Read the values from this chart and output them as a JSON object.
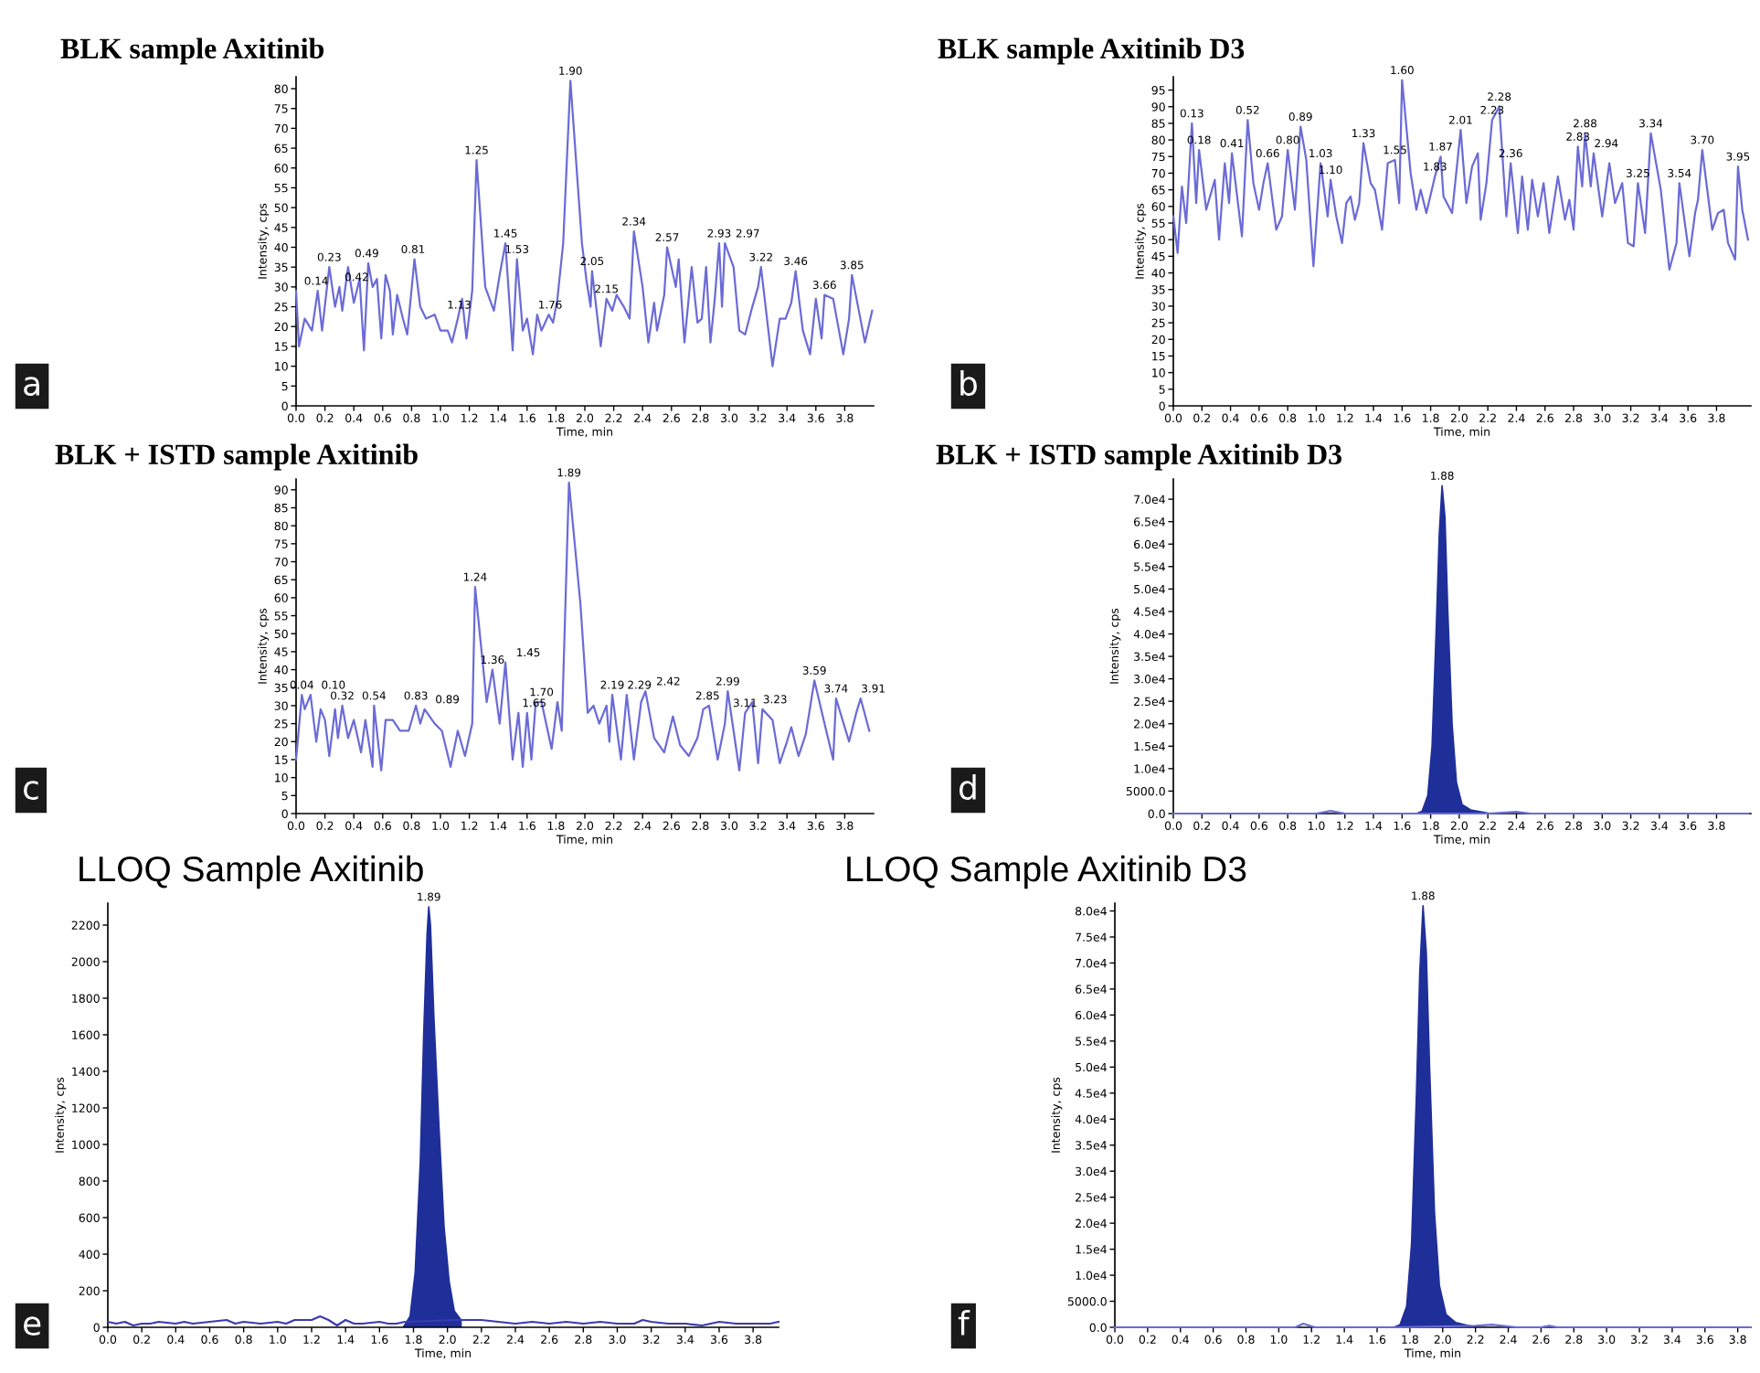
{
  "chart_data": [
    {
      "type": "line",
      "title": "BLK sample Axitinib",
      "xlabel": "Time, min",
      "ylabel": "Intensity, cps",
      "xlim": [
        0,
        4.0
      ],
      "ylim": [
        0,
        83
      ],
      "xticks": [
        {
          "value": 0,
          "label": "0.0"
        },
        0.2,
        0.4,
        0.6,
        0.8,
        {
          "value": 1,
          "label": "1.0"
        },
        1.2,
        1.4,
        1.6,
        1.8,
        {
          "value": 2,
          "label": "2.0"
        },
        2.2,
        2.4,
        2.6,
        2.8,
        {
          "value": 3,
          "label": "3.0"
        },
        3.2,
        3.4,
        3.6,
        3.8
      ],
      "yticks": [
        0,
        5,
        10,
        15,
        20,
        25,
        30,
        35,
        40,
        45,
        50,
        55,
        60,
        65,
        70,
        75,
        80
      ],
      "series": [
        {
          "color": "#6b6bd6",
          "x": [
            0,
            0.02,
            0.06,
            0.11,
            0.15,
            0.18,
            0.23,
            0.27,
            0.3,
            0.32,
            0.36,
            0.4,
            0.44,
            0.47,
            0.5,
            0.53,
            0.56,
            0.59,
            0.62,
            0.65,
            0.67,
            0.7,
            0.74,
            0.77,
            0.82,
            0.86,
            0.9,
            0.96,
            1.0,
            1.05,
            1.08,
            1.12,
            1.15,
            1.18,
            1.22,
            1.25,
            1.31,
            1.34,
            1.37,
            1.41,
            1.45,
            1.5,
            1.53,
            1.57,
            1.6,
            1.64,
            1.67,
            1.7,
            1.75,
            1.78,
            1.81,
            1.85,
            1.9,
            1.98,
            2.01,
            2.04,
            2.05,
            2.11,
            2.15,
            2.19,
            2.22,
            2.27,
            2.31,
            2.34,
            2.4,
            2.44,
            2.48,
            2.5,
            2.55,
            2.57,
            2.63,
            2.65,
            2.69,
            2.74,
            2.78,
            2.81,
            2.84,
            2.87,
            2.9,
            2.93,
            2.95,
            2.97,
            3.03,
            3.07,
            3.11,
            3.16,
            3.2,
            3.22,
            3.3,
            3.35,
            3.39,
            3.43,
            3.46,
            3.51,
            3.56,
            3.6,
            3.64,
            3.66,
            3.72,
            3.79,
            3.83,
            3.85,
            3.94,
            3.99
          ],
          "values": [
            29,
            15,
            22,
            19,
            29,
            19,
            35,
            25,
            30,
            24,
            35,
            26,
            32,
            14,
            36,
            30,
            32,
            17,
            33,
            29,
            18,
            28,
            22,
            18,
            37,
            25,
            22,
            23,
            19,
            19,
            16,
            22,
            27,
            17,
            29,
            62,
            30,
            27,
            24,
            33,
            41,
            14,
            37,
            19,
            22,
            13,
            23,
            19,
            23,
            21,
            27,
            41,
            82,
            41,
            32,
            25,
            34,
            15,
            27,
            24,
            28,
            25,
            22,
            44,
            30,
            16,
            26,
            19,
            28,
            40,
            30,
            37,
            16,
            35,
            21,
            22,
            35,
            16,
            27,
            41,
            25,
            41,
            35,
            19,
            18,
            25,
            30,
            35,
            10,
            22,
            22,
            26,
            34,
            19,
            13,
            27,
            17,
            28,
            27,
            13,
            22,
            33,
            16,
            24
          ]
        }
      ],
      "annotations": [
        "a",
        {
          "text": "0.14",
          "x": 0.14,
          "y": 29
        },
        {
          "text": "0.23",
          "x": 0.23,
          "y": 35
        },
        {
          "text": "0.42",
          "x": 0.42,
          "y": 30
        },
        {
          "text": "0.49",
          "x": 0.49,
          "y": 36
        },
        {
          "text": "0.81",
          "x": 0.81,
          "y": 37
        },
        {
          "text": "1.13",
          "x": 1.13,
          "y": 23
        },
        {
          "text": "1.25",
          "x": 1.25,
          "y": 62
        },
        {
          "text": "1.45",
          "x": 1.45,
          "y": 41
        },
        {
          "text": "1.53",
          "x": 1.53,
          "y": 37
        },
        {
          "text": "1.76",
          "x": 1.76,
          "y": 23
        },
        {
          "text": "1.90",
          "x": 1.9,
          "y": 82
        },
        {
          "text": "2.05",
          "x": 2.05,
          "y": 34
        },
        {
          "text": "2.15",
          "x": 2.15,
          "y": 27
        },
        {
          "text": "2.34",
          "x": 2.34,
          "y": 44
        },
        {
          "text": "2.57",
          "x": 2.57,
          "y": 40
        },
        {
          "text": "2.93",
          "x": 2.93,
          "y": 41
        },
        {
          "text": "2.97",
          "x": 2.97,
          "y": 41
        },
        {
          "text": "3.22",
          "x": 3.22,
          "y": 35
        },
        {
          "text": "3.46",
          "x": 3.46,
          "y": 34
        },
        {
          "text": "3.66",
          "x": 3.66,
          "y": 28
        },
        {
          "text": "3.85",
          "x": 3.85,
          "y": 33
        }
      ]
    },
    {
      "type": "line",
      "title": "BLK sample Axitinib D3",
      "xlabel": "Time, min",
      "ylabel": "Intensity, cps",
      "xlim": [
        0,
        4.04
      ],
      "ylim": [
        0,
        99
      ],
      "xticks": [
        {
          "value": 0,
          "label": "0.0"
        },
        0.2,
        0.4,
        0.6,
        0.8,
        {
          "value": 1,
          "label": "1.0"
        },
        1.2,
        1.4,
        1.6,
        1.8,
        {
          "value": 2,
          "label": "2.0"
        },
        2.2,
        2.4,
        2.6,
        2.8,
        {
          "value": 3,
          "label": "3.0"
        },
        3.2,
        3.4,
        3.6,
        3.8
      ],
      "yticks": [
        0,
        5,
        10,
        15,
        20,
        25,
        30,
        35,
        40,
        45,
        50,
        55,
        60,
        65,
        70,
        75,
        80,
        85,
        90,
        95
      ],
      "series": [
        {
          "color": "#6b6bd6",
          "x": [
            0,
            0.03,
            0.06,
            0.09,
            0.13,
            0.16,
            0.18,
            0.23,
            0.27,
            0.29,
            0.32,
            0.36,
            0.39,
            0.41,
            0.48,
            0.52,
            0.56,
            0.6,
            0.63,
            0.66,
            0.72,
            0.76,
            0.8,
            0.85,
            0.89,
            0.93,
            0.98,
            1.03,
            1.08,
            1.1,
            1.14,
            1.18,
            1.21,
            1.24,
            1.27,
            1.3,
            1.33,
            1.38,
            1.41,
            1.46,
            1.5,
            1.55,
            1.58,
            1.6,
            1.66,
            1.7,
            1.73,
            1.77,
            1.83,
            1.87,
            1.89,
            1.95,
            2.01,
            2.05,
            2.09,
            2.13,
            2.15,
            2.19,
            2.23,
            2.28,
            2.33,
            2.36,
            2.41,
            2.44,
            2.48,
            2.51,
            2.55,
            2.59,
            2.63,
            2.69,
            2.74,
            2.77,
            2.8,
            2.83,
            2.86,
            2.88,
            2.92,
            2.94,
            3.0,
            3.05,
            3.09,
            3.14,
            3.18,
            3.22,
            3.25,
            3.3,
            3.34,
            3.41,
            3.47,
            3.52,
            3.54,
            3.61,
            3.65,
            3.67,
            3.7,
            3.77,
            3.81,
            3.85,
            3.88,
            3.93,
            3.95,
            3.98,
            4.02
          ],
          "values": [
            57,
            46,
            66,
            55,
            85,
            61,
            77,
            59,
            65,
            68,
            50,
            73,
            61,
            76,
            51,
            86,
            67,
            59,
            67,
            73,
            53,
            57,
            77,
            59,
            84,
            74,
            42,
            73,
            57,
            68,
            57,
            49,
            61,
            63,
            56,
            61,
            79,
            67,
            65,
            53,
            73,
            74,
            61,
            98,
            70,
            59,
            65,
            58,
            69,
            75,
            63,
            58,
            83,
            61,
            72,
            76,
            56,
            67,
            86,
            90,
            57,
            73,
            52,
            69,
            53,
            68,
            57,
            67,
            52,
            69,
            56,
            62,
            53,
            78,
            66,
            82,
            66,
            76,
            57,
            73,
            61,
            67,
            49,
            48,
            67,
            52,
            82,
            65,
            41,
            49,
            67,
            45,
            58,
            62,
            77,
            53,
            58,
            59,
            49,
            44,
            72,
            59,
            50
          ]
        }
      ],
      "annotations": [
        "b",
        {
          "text": "0.13",
          "x": 0.13,
          "y": 85
        },
        {
          "text": "0.18",
          "x": 0.18,
          "y": 77
        },
        {
          "text": "0.41",
          "x": 0.41,
          "y": 76
        },
        {
          "text": "0.52",
          "x": 0.52,
          "y": 86
        },
        {
          "text": "0.66",
          "x": 0.66,
          "y": 73
        },
        {
          "text": "0.80",
          "x": 0.8,
          "y": 77
        },
        {
          "text": "0.89",
          "x": 0.89,
          "y": 84
        },
        {
          "text": "1.03",
          "x": 1.03,
          "y": 73
        },
        {
          "text": "1.10",
          "x": 1.1,
          "y": 68
        },
        {
          "text": "1.33",
          "x": 1.33,
          "y": 79
        },
        {
          "text": "1.55",
          "x": 1.55,
          "y": 74
        },
        {
          "text": "1.60",
          "x": 1.6,
          "y": 98
        },
        {
          "text": "1.83",
          "x": 1.83,
          "y": 69
        },
        {
          "text": "1.87",
          "x": 1.87,
          "y": 75
        },
        {
          "text": "2.01",
          "x": 2.01,
          "y": 83
        },
        {
          "text": "2.23",
          "x": 2.23,
          "y": 86
        },
        {
          "text": "2.28",
          "x": 2.28,
          "y": 90
        },
        {
          "text": "2.36",
          "x": 2.36,
          "y": 73
        },
        {
          "text": "2.83",
          "x": 2.83,
          "y": 78
        },
        {
          "text": "2.88",
          "x": 2.88,
          "y": 82
        },
        {
          "text": "2.94",
          "x": 2.94,
          "y": 76
        },
        {
          "text": "3.25",
          "x": 3.25,
          "y": 67
        },
        {
          "text": "3.34",
          "x": 3.34,
          "y": 82
        },
        {
          "text": "3.54",
          "x": 3.54,
          "y": 67
        },
        {
          "text": "3.70",
          "x": 3.7,
          "y": 77
        },
        {
          "text": "3.95",
          "x": 3.95,
          "y": 72
        }
      ]
    },
    {
      "type": "line",
      "title": "BLK + ISTD sample Axitinib",
      "xlabel": "Time, min",
      "ylabel": "Intensity, cps",
      "xlim": [
        0,
        4.0
      ],
      "ylim": [
        0,
        93
      ],
      "xticks": [
        {
          "value": 0,
          "label": "0.0"
        },
        0.2,
        0.4,
        0.6,
        0.8,
        {
          "value": 1,
          "label": "1.0"
        },
        1.2,
        1.4,
        1.6,
        1.8,
        {
          "value": 2,
          "label": "2.0"
        },
        2.2,
        2.4,
        2.6,
        2.8,
        {
          "value": 3,
          "label": "3.0"
        },
        3.2,
        3.4,
        3.6,
        3.8
      ],
      "yticks": [
        0,
        5,
        10,
        15,
        20,
        25,
        30,
        35,
        40,
        45,
        50,
        55,
        60,
        65,
        70,
        75,
        80,
        85,
        90
      ],
      "series": [
        {
          "color": "#6b6bd6",
          "x": [
            0,
            0.04,
            0.06,
            0.1,
            0.14,
            0.17,
            0.2,
            0.23,
            0.27,
            0.29,
            0.32,
            0.36,
            0.4,
            0.45,
            0.48,
            0.53,
            0.54,
            0.59,
            0.62,
            0.67,
            0.72,
            0.78,
            0.83,
            0.86,
            0.89,
            0.96,
            1.01,
            1.07,
            1.12,
            1.17,
            1.22,
            1.24,
            1.32,
            1.36,
            1.41,
            1.45,
            1.5,
            1.54,
            1.57,
            1.6,
            1.63,
            1.66,
            1.7,
            1.77,
            1.81,
            1.84,
            1.89,
            1.97,
            2.02,
            2.06,
            2.1,
            2.15,
            2.17,
            2.19,
            2.25,
            2.29,
            2.34,
            2.39,
            2.42,
            2.48,
            2.55,
            2.61,
            2.66,
            2.72,
            2.78,
            2.82,
            2.86,
            2.92,
            2.97,
            2.99,
            3.07,
            3.11,
            3.16,
            3.2,
            3.23,
            3.3,
            3.35,
            3.4,
            3.43,
            3.48,
            3.53,
            3.59,
            3.66,
            3.72,
            3.74,
            3.83,
            3.88,
            3.91,
            3.97
          ],
          "values": [
            15,
            33,
            29,
            33,
            20,
            29,
            26,
            16,
            29,
            21,
            30,
            21,
            26,
            17,
            26,
            13,
            30,
            12,
            26,
            26,
            23,
            23,
            30,
            25,
            29,
            25,
            23,
            13,
            23,
            16,
            25,
            63,
            31,
            40,
            25,
            42,
            15,
            28,
            13,
            28,
            15,
            31,
            31,
            18,
            31,
            23,
            92,
            58,
            28,
            30,
            25,
            30,
            20,
            33,
            15,
            33,
            15,
            31,
            34,
            21,
            17,
            27,
            19,
            16,
            21,
            29,
            30,
            15,
            25,
            34,
            12,
            28,
            31,
            14,
            29,
            26,
            14,
            20,
            24,
            16,
            22,
            37,
            25,
            15,
            32,
            20,
            28,
            32,
            23
          ]
        }
      ],
      "annotations": [
        "c",
        {
          "text": "0.04",
          "x": 0.04,
          "y": 33
        },
        {
          "text": "0.10",
          "x": 0.1,
          "y": 33
        },
        {
          "text": "0.32",
          "x": 0.32,
          "y": 30
        },
        {
          "text": "0.54",
          "x": 0.54,
          "y": 30
        },
        {
          "text": "0.83",
          "x": 0.83,
          "y": 30
        },
        {
          "text": "0.89",
          "x": 0.89,
          "y": 29
        },
        {
          "text": "1.24",
          "x": 1.24,
          "y": 63
        },
        {
          "text": "1.36",
          "x": 1.36,
          "y": 40
        },
        {
          "text": "1.45",
          "x": 1.45,
          "y": 42
        },
        {
          "text": "1.65",
          "x": 1.65,
          "y": 28
        },
        {
          "text": "1.70",
          "x": 1.7,
          "y": 31
        },
        {
          "text": "1.89",
          "x": 1.89,
          "y": 92
        },
        {
          "text": "2.19",
          "x": 2.19,
          "y": 33
        },
        {
          "text": "2.29",
          "x": 2.29,
          "y": 33
        },
        {
          "text": "2.42",
          "x": 2.42,
          "y": 34
        },
        {
          "text": "2.85",
          "x": 2.85,
          "y": 30
        },
        {
          "text": "2.99",
          "x": 2.99,
          "y": 34
        },
        {
          "text": "3.11",
          "x": 3.11,
          "y": 28
        },
        {
          "text": "3.23",
          "x": 3.23,
          "y": 29
        },
        {
          "text": "3.59",
          "x": 3.59,
          "y": 37
        },
        {
          "text": "3.74",
          "x": 3.74,
          "y": 32
        },
        {
          "text": "3.91",
          "x": 3.91,
          "y": 32
        }
      ]
    },
    {
      "type": "line",
      "title": "BLK + ISTD sample Axitinib D3",
      "xlabel": "Time, min",
      "ylabel": "Intensity, cps",
      "xlim": [
        0,
        4.04
      ],
      "ylim": [
        0,
        74500
      ],
      "xticks": [
        {
          "value": 0,
          "label": "0.0"
        },
        0.2,
        0.4,
        0.6,
        0.8,
        {
          "value": 1,
          "label": "1.0"
        },
        1.2,
        1.4,
        1.6,
        1.8,
        {
          "value": 2,
          "label": "2.0"
        },
        2.2,
        2.4,
        2.6,
        2.8,
        {
          "value": 3,
          "label": "3.0"
        },
        3.2,
        3.4,
        3.6,
        3.8
      ],
      "yticks": [
        {
          "value": 0,
          "label": "0.0"
        },
        {
          "value": 5000,
          "label": "5000.0"
        },
        {
          "value": 10000,
          "label": "1.0e4"
        },
        {
          "value": 15000,
          "label": "1.5e4"
        },
        {
          "value": 20000,
          "label": "2.0e4"
        },
        {
          "value": 25000,
          "label": "2.5e4"
        },
        {
          "value": 30000,
          "label": "3.0e4"
        },
        {
          "value": 35000,
          "label": "3.5e4"
        },
        {
          "value": 40000,
          "label": "4.0e4"
        },
        {
          "value": 45000,
          "label": "4.5e4"
        },
        {
          "value": 50000,
          "label": "5.0e4"
        },
        {
          "value": 55000,
          "label": "5.5e4"
        },
        {
          "value": 60000,
          "label": "6.0e4"
        },
        {
          "value": 65000,
          "label": "6.5e4"
        },
        {
          "value": 70000,
          "label": "7.0e4"
        }
      ],
      "series": [
        {
          "color": "#6b6bd6",
          "x": [
            0,
            1.0,
            1.1,
            1.2,
            1.7,
            2.2,
            2.4,
            2.5,
            4.02
          ],
          "values": [
            0,
            0,
            600,
            0,
            0,
            0,
            400,
            0,
            0
          ]
        },
        {
          "type": "area",
          "color": "#1f2f9a",
          "x": [
            1.7,
            1.74,
            1.78,
            1.81,
            1.84,
            1.86,
            1.88,
            1.9,
            1.92,
            1.95,
            1.98,
            2.02,
            2.08,
            2.15,
            2.22
          ],
          "values": [
            0,
            500,
            4000,
            15000,
            42000,
            62000,
            73000,
            66000,
            45000,
            20000,
            7000,
            2000,
            800,
            400,
            0
          ]
        }
      ],
      "annotations": [
        "d",
        {
          "text": "1.88",
          "x": 1.88,
          "y": 73000
        }
      ]
    },
    {
      "type": "line",
      "title": "LLOQ Sample Axitinib",
      "xlabel": "Time, min",
      "ylabel": "Intensity, cps",
      "xlim": [
        0,
        3.95
      ],
      "ylim": [
        0,
        2320
      ],
      "xticks": [
        {
          "value": 0,
          "label": "0.0"
        },
        0.2,
        0.4,
        0.6,
        0.8,
        {
          "value": 1,
          "label": "1.0"
        },
        1.2,
        1.4,
        1.6,
        1.8,
        {
          "value": 2,
          "label": "2.0"
        },
        2.2,
        2.4,
        2.6,
        2.8,
        {
          "value": 3,
          "label": "3.0"
        },
        3.2,
        3.4,
        3.6,
        3.8
      ],
      "yticks": [
        0,
        200,
        400,
        600,
        800,
        1000,
        1200,
        1400,
        1600,
        1800,
        2000,
        2200
      ],
      "series": [
        {
          "color": "#3a3ab0",
          "x": [
            0,
            0.05,
            0.1,
            0.15,
            0.2,
            0.25,
            0.3,
            0.4,
            0.45,
            0.5,
            0.6,
            0.7,
            0.75,
            0.8,
            0.9,
            1.0,
            1.05,
            1.1,
            1.2,
            1.25,
            1.3,
            1.35,
            1.4,
            1.45,
            1.5,
            1.6,
            1.65,
            1.7,
            1.75,
            2.05,
            2.1,
            2.2,
            2.3,
            2.4,
            2.5,
            2.6,
            2.7,
            2.8,
            2.9,
            3.0,
            3.1,
            3.15,
            3.2,
            3.3,
            3.4,
            3.5,
            3.6,
            3.7,
            3.8,
            3.9,
            3.95
          ],
          "values": [
            30,
            20,
            30,
            10,
            20,
            20,
            30,
            20,
            30,
            20,
            30,
            40,
            20,
            30,
            20,
            30,
            20,
            40,
            40,
            60,
            40,
            10,
            40,
            20,
            20,
            30,
            20,
            20,
            30,
            40,
            40,
            40,
            30,
            20,
            30,
            20,
            30,
            20,
            30,
            20,
            20,
            40,
            30,
            20,
            20,
            10,
            30,
            20,
            20,
            20,
            30
          ]
        },
        {
          "type": "area",
          "color": "#1f2f9a",
          "x": [
            1.74,
            1.78,
            1.81,
            1.84,
            1.86,
            1.88,
            1.89,
            1.9,
            1.92,
            1.95,
            1.98,
            2.01,
            2.04,
            2.08
          ],
          "values": [
            0,
            60,
            300,
            900,
            1600,
            2150,
            2300,
            2200,
            1700,
            1100,
            550,
            250,
            90,
            40
          ]
        }
      ],
      "annotations": [
        "e",
        {
          "text": "1.89",
          "x": 1.89,
          "y": 2300
        }
      ]
    },
    {
      "type": "line",
      "title": "LLOQ Sample Axitinib D3",
      "xlabel": "Time, min",
      "ylabel": "Intensity, cps",
      "xlim": [
        0,
        3.88
      ],
      "ylim": [
        0,
        81500
      ],
      "xticks": [
        {
          "value": 0,
          "label": "0.0"
        },
        0.2,
        0.4,
        0.6,
        0.8,
        {
          "value": 1,
          "label": "1.0"
        },
        1.2,
        1.4,
        1.6,
        1.8,
        {
          "value": 2,
          "label": "2.0"
        },
        2.2,
        2.4,
        2.6,
        2.8,
        {
          "value": 3,
          "label": "3.0"
        },
        3.2,
        3.4,
        3.6,
        3.8
      ],
      "yticks": [
        {
          "value": 0,
          "label": "0.0"
        },
        {
          "value": 5000,
          "label": "5000.0"
        },
        {
          "value": 10000,
          "label": "1.0e4"
        },
        {
          "value": 15000,
          "label": "1.5e4"
        },
        {
          "value": 20000,
          "label": "2.0e4"
        },
        {
          "value": 25000,
          "label": "2.5e4"
        },
        {
          "value": 30000,
          "label": "3.0e4"
        },
        {
          "value": 35000,
          "label": "3.5e4"
        },
        {
          "value": 40000,
          "label": "4.0e4"
        },
        {
          "value": 45000,
          "label": "4.5e4"
        },
        {
          "value": 50000,
          "label": "5.0e4"
        },
        {
          "value": 55000,
          "label": "5.5e4"
        },
        {
          "value": 60000,
          "label": "6.0e4"
        },
        {
          "value": 65000,
          "label": "6.5e4"
        },
        {
          "value": 70000,
          "label": "7.0e4"
        },
        {
          "value": 75000,
          "label": "7.5e4"
        },
        {
          "value": 80000,
          "label": "8.0e4"
        }
      ],
      "series": [
        {
          "color": "#6b6bd6",
          "x": [
            0,
            1.1,
            1.15,
            1.22,
            1.7,
            2.2,
            2.3,
            2.45,
            2.6,
            2.65,
            2.7,
            3.88
          ],
          "values": [
            0,
            0,
            700,
            0,
            0,
            300,
            500,
            0,
            0,
            300,
            0,
            0
          ]
        },
        {
          "type": "area",
          "color": "#1f2f9a",
          "x": [
            1.7,
            1.74,
            1.78,
            1.81,
            1.84,
            1.86,
            1.88,
            1.9,
            1.92,
            1.95,
            1.98,
            2.02,
            2.08,
            2.15,
            2.22
          ],
          "values": [
            0,
            500,
            4000,
            16000,
            45000,
            68000,
            81000,
            72000,
            50000,
            22000,
            8000,
            2500,
            900,
            400,
            0
          ]
        }
      ],
      "annotations": [
        "f",
        {
          "text": "1.88",
          "x": 1.88,
          "y": 81000
        }
      ]
    }
  ]
}
